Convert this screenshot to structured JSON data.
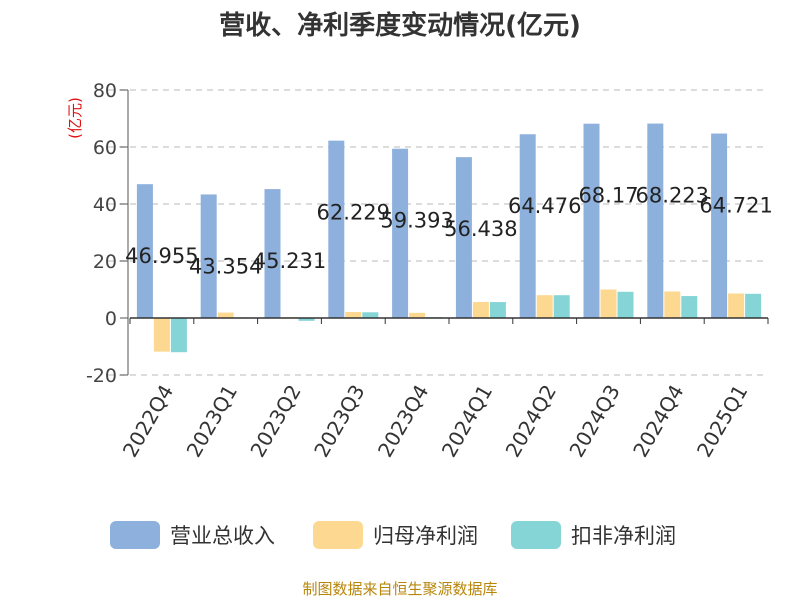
{
  "chart_data": {
    "type": "bar",
    "title": "营收、净利季度变动情况(亿元)",
    "ylabel": "(亿元)",
    "xlabel": "",
    "ylim": [
      -20,
      80
    ],
    "yticks": [
      80,
      60,
      40,
      20,
      0,
      -20
    ],
    "grid": true,
    "legend_position": "bottom",
    "categories": [
      "2022Q4",
      "2023Q1",
      "2023Q2",
      "2023Q3",
      "2023Q4",
      "2024Q1",
      "2024Q2",
      "2024Q3",
      "2024Q4",
      "2025Q1"
    ],
    "series": [
      {
        "name": "营业总收入",
        "color": "#8eb0dc",
        "values": [
          46.955,
          43.354,
          45.231,
          62.229,
          59.393,
          56.438,
          64.476,
          68.17,
          68.223,
          64.721
        ],
        "labels": [
          "46.955",
          "43.354",
          "45.231",
          "62.229",
          "59.393",
          "56.438",
          "64.476",
          "68.17",
          "68.223",
          "64.721"
        ]
      },
      {
        "name": "归母净利润",
        "color": "#fdd891",
        "values": [
          -11.8,
          1.9,
          0.3,
          2.1,
          1.8,
          5.6,
          8.0,
          10.0,
          9.3,
          8.6
        ]
      },
      {
        "name": "扣非净利润",
        "color": "#85d5d6",
        "values": [
          -12.0,
          0.2,
          -1.0,
          2.0,
          0.3,
          5.6,
          8.0,
          9.2,
          7.7,
          8.5
        ]
      }
    ]
  },
  "footer": "制图数据来自恒生聚源数据库"
}
